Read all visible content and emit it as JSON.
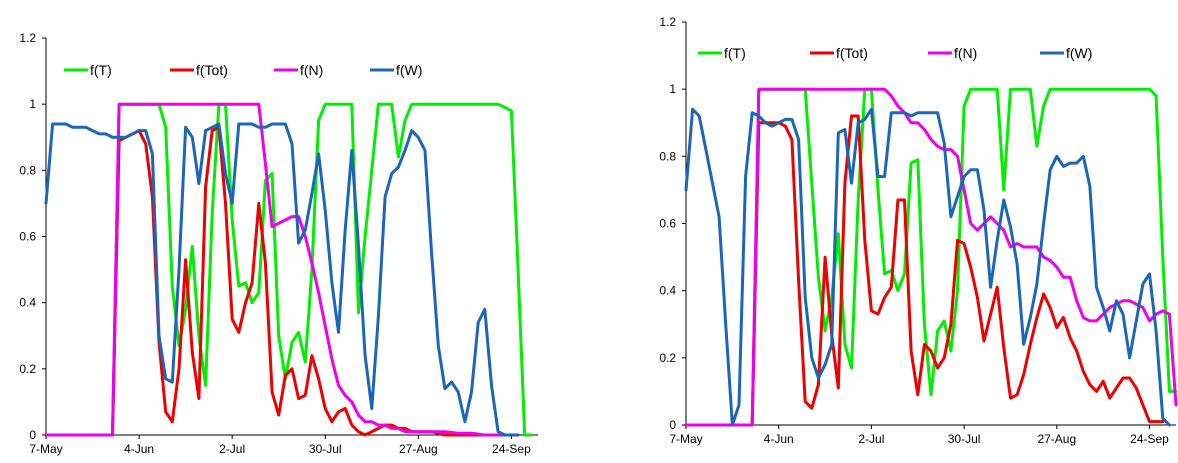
{
  "chart_data": [
    {
      "type": "line",
      "title": "",
      "xlabel": "",
      "ylabel": "",
      "ylim": [
        0,
        1.2
      ],
      "yticks": [
        "0",
        "0.2",
        "0.4",
        "0.6",
        "0.8",
        "1",
        "1.2"
      ],
      "xticks": [
        "7-May",
        "4-Jun",
        "2-Jul",
        "30-Jul",
        "27-Aug",
        "24-Sep"
      ],
      "xlim_day": [
        0,
        148
      ],
      "legend_position": "top",
      "series": [
        {
          "name": "f(T)",
          "color": "#00ee00",
          "x": [
            0,
            20,
            22,
            24,
            26,
            28,
            30,
            32,
            34,
            36,
            38,
            40,
            42,
            44,
            46,
            48,
            50,
            52,
            54,
            56,
            58,
            60,
            62,
            64,
            66,
            68,
            70,
            72,
            74,
            76,
            78,
            80,
            82,
            84,
            86,
            88,
            90,
            92,
            94,
            96,
            98,
            100,
            102,
            104,
            106,
            108,
            110,
            112,
            114,
            116,
            120,
            124,
            128,
            132,
            136,
            140,
            142,
            144,
            146
          ],
          "y": [
            0,
            0,
            1,
            1,
            1,
            1,
            1,
            1,
            1,
            0.93,
            0.45,
            0.27,
            0.38,
            0.57,
            0.3,
            0.15,
            0.67,
            1,
            1,
            0.65,
            0.45,
            0.46,
            0.4,
            0.43,
            0.77,
            0.79,
            0.3,
            0.17,
            0.28,
            0.31,
            0.22,
            0.5,
            0.95,
            1,
            1,
            1,
            1,
            1,
            0.37,
            0.6,
            0.8,
            1,
            1,
            1,
            0.84,
            0.95,
            1,
            1,
            1,
            1,
            1,
            1,
            1,
            1,
            1,
            0.98,
            0.5,
            0,
            0
          ]
        },
        {
          "name": "f(Tot)",
          "color": "#ee0000",
          "x": [
            0,
            20,
            22,
            24,
            26,
            28,
            30,
            32,
            34,
            36,
            38,
            40,
            42,
            44,
            46,
            48,
            50,
            52,
            54,
            56,
            58,
            60,
            62,
            64,
            66,
            68,
            70,
            72,
            74,
            76,
            78,
            80,
            82,
            84,
            86,
            88,
            90,
            92,
            94,
            96,
            98,
            100,
            102,
            104,
            106,
            108,
            110,
            112,
            114,
            116,
            120,
            124,
            128,
            132,
            136,
            140
          ],
          "y": [
            0,
            0,
            0.89,
            0.9,
            0.91,
            0.92,
            0.88,
            0.72,
            0.28,
            0.07,
            0.04,
            0.2,
            0.53,
            0.25,
            0.11,
            0.75,
            0.92,
            0.93,
            0.7,
            0.35,
            0.31,
            0.4,
            0.46,
            0.7,
            0.52,
            0.13,
            0.06,
            0.18,
            0.2,
            0.11,
            0.12,
            0.24,
            0.17,
            0.08,
            0.04,
            0.07,
            0.08,
            0.03,
            0.01,
            0.0,
            0.01,
            0.02,
            0.03,
            0.03,
            0.02,
            0.02,
            0.01,
            0.01,
            0.01,
            0.01,
            0.0,
            0.0,
            0.0,
            0.0,
            0.0,
            0.0
          ]
        },
        {
          "name": "f(N)",
          "color": "#ee00ee",
          "x": [
            0,
            20,
            22,
            24,
            26,
            28,
            30,
            32,
            34,
            36,
            38,
            40,
            42,
            44,
            46,
            48,
            50,
            52,
            54,
            56,
            58,
            60,
            62,
            64,
            66,
            68,
            70,
            72,
            74,
            76,
            78,
            80,
            82,
            84,
            86,
            88,
            90,
            92,
            94,
            96,
            98,
            100,
            102,
            104,
            106,
            108,
            110,
            112,
            114,
            116,
            120,
            124,
            128,
            132,
            136,
            140
          ],
          "y": [
            0,
            0,
            1,
            1,
            1,
            1,
            1,
            1,
            1,
            1,
            1,
            1,
            1,
            1,
            1,
            1,
            1,
            1,
            1,
            1,
            1,
            1,
            1,
            1,
            0.82,
            0.63,
            0.64,
            0.65,
            0.66,
            0.66,
            0.6,
            0.52,
            0.43,
            0.33,
            0.23,
            0.15,
            0.12,
            0.1,
            0.06,
            0.04,
            0.04,
            0.03,
            0.03,
            0.02,
            0.02,
            0.01,
            0.01,
            0.01,
            0.01,
            0.01,
            0.01,
            0.005,
            0.005,
            0.0,
            0.0,
            0.0
          ]
        },
        {
          "name": "f(W)",
          "color": "#1c66b8",
          "x": [
            0,
            2,
            4,
            6,
            8,
            10,
            12,
            14,
            16,
            18,
            20,
            22,
            24,
            26,
            28,
            30,
            32,
            34,
            36,
            38,
            40,
            42,
            44,
            46,
            48,
            50,
            52,
            54,
            56,
            58,
            60,
            62,
            64,
            66,
            68,
            70,
            72,
            74,
            76,
            78,
            80,
            82,
            84,
            86,
            88,
            90,
            92,
            94,
            96,
            98,
            100,
            102,
            104,
            106,
            108,
            110,
            112,
            114,
            116,
            118,
            120,
            122,
            124,
            126,
            128,
            130,
            132,
            134,
            136,
            138,
            140,
            142
          ],
          "y": [
            0.7,
            0.94,
            0.94,
            0.94,
            0.93,
            0.93,
            0.93,
            0.92,
            0.91,
            0.91,
            0.9,
            0.9,
            0.9,
            0.91,
            0.92,
            0.92,
            0.85,
            0.3,
            0.17,
            0.16,
            0.5,
            0.93,
            0.9,
            0.76,
            0.92,
            0.93,
            0.94,
            0.79,
            0.7,
            0.94,
            0.94,
            0.94,
            0.93,
            0.93,
            0.94,
            0.94,
            0.94,
            0.88,
            0.58,
            0.62,
            0.73,
            0.85,
            0.68,
            0.46,
            0.31,
            0.62,
            0.86,
            0.57,
            0.24,
            0.08,
            0.36,
            0.72,
            0.79,
            0.81,
            0.86,
            0.92,
            0.9,
            0.86,
            0.55,
            0.27,
            0.14,
            0.16,
            0.13,
            0.04,
            0.13,
            0.34,
            0.38,
            0.15,
            0.01,
            0.0,
            0.0,
            0.0
          ]
        }
      ]
    },
    {
      "type": "line",
      "title": "",
      "xlabel": "",
      "ylabel": "",
      "ylim": [
        0,
        1.2
      ],
      "yticks": [
        "0",
        "0.2",
        "0.4",
        "0.6",
        "0.8",
        "1",
        "1.2"
      ],
      "xticks": [
        "7-May",
        "4-Jun",
        "2-Jul",
        "30-Jul",
        "27-Aug",
        "24-Sep"
      ],
      "xlim_day": [
        0,
        148
      ],
      "legend_position": "top",
      "series": [
        {
          "name": "f(T)",
          "color": "#00ee00",
          "x": [
            0,
            20,
            22,
            24,
            26,
            28,
            30,
            32,
            34,
            36,
            38,
            40,
            42,
            44,
            46,
            48,
            50,
            52,
            54,
            56,
            58,
            60,
            62,
            64,
            66,
            68,
            70,
            72,
            74,
            76,
            78,
            80,
            82,
            84,
            86,
            88,
            90,
            92,
            94,
            96,
            98,
            100,
            102,
            104,
            106,
            108,
            110,
            112,
            114,
            116,
            120,
            124,
            128,
            132,
            136,
            140,
            142,
            144,
            146,
            148
          ],
          "y": [
            0,
            0,
            1,
            1,
            1,
            1,
            1,
            1,
            1,
            1,
            0.72,
            0.44,
            0.28,
            0.38,
            0.57,
            0.24,
            0.17,
            0.67,
            1,
            1,
            0.7,
            0.45,
            0.46,
            0.4,
            0.45,
            0.78,
            0.79,
            0.3,
            0.09,
            0.28,
            0.31,
            0.22,
            0.4,
            0.95,
            1,
            1,
            1,
            1,
            1,
            0.7,
            1,
            1,
            1,
            1,
            0.83,
            0.95,
            1,
            1,
            1,
            1,
            1,
            1,
            1,
            1,
            1,
            1,
            0.98,
            0.5,
            0.1,
            0.1
          ]
        },
        {
          "name": "f(Tot)",
          "color": "#ee0000",
          "x": [
            0,
            20,
            22,
            24,
            26,
            28,
            30,
            32,
            34,
            36,
            38,
            40,
            42,
            44,
            46,
            48,
            50,
            52,
            54,
            56,
            58,
            60,
            62,
            64,
            66,
            68,
            70,
            72,
            74,
            76,
            78,
            80,
            82,
            84,
            86,
            88,
            90,
            92,
            94,
            96,
            98,
            100,
            102,
            104,
            106,
            108,
            110,
            112,
            114,
            116,
            118,
            120,
            122,
            124,
            126,
            128,
            130,
            132,
            134,
            136,
            138,
            140,
            142,
            144
          ],
          "y": [
            0,
            0,
            0.9,
            0.9,
            0.9,
            0.9,
            0.89,
            0.85,
            0.43,
            0.07,
            0.05,
            0.12,
            0.5,
            0.27,
            0.11,
            0.72,
            0.92,
            0.92,
            0.55,
            0.34,
            0.33,
            0.38,
            0.41,
            0.67,
            0.67,
            0.22,
            0.09,
            0.24,
            0.22,
            0.17,
            0.2,
            0.3,
            0.55,
            0.54,
            0.47,
            0.38,
            0.25,
            0.33,
            0.41,
            0.23,
            0.08,
            0.09,
            0.15,
            0.24,
            0.32,
            0.39,
            0.35,
            0.29,
            0.32,
            0.26,
            0.22,
            0.16,
            0.12,
            0.1,
            0.13,
            0.08,
            0.11,
            0.14,
            0.14,
            0.11,
            0.06,
            0.01,
            0.01,
            0.01
          ]
        },
        {
          "name": "f(N)",
          "color": "#ee00ee",
          "x": [
            0,
            20,
            22,
            24,
            26,
            28,
            30,
            32,
            34,
            36,
            38,
            40,
            42,
            44,
            46,
            48,
            50,
            52,
            54,
            56,
            58,
            60,
            62,
            64,
            66,
            68,
            70,
            72,
            74,
            76,
            78,
            80,
            82,
            84,
            86,
            88,
            90,
            92,
            94,
            96,
            98,
            100,
            102,
            104,
            106,
            108,
            110,
            112,
            114,
            116,
            118,
            120,
            122,
            124,
            126,
            128,
            130,
            132,
            134,
            136,
            138,
            140,
            142,
            144,
            146,
            148
          ],
          "y": [
            0,
            0,
            1,
            1,
            1,
            1,
            1,
            1,
            1,
            1,
            1,
            1,
            1,
            1,
            1,
            1,
            1,
            1,
            1,
            1,
            1,
            1,
            0.98,
            0.95,
            0.93,
            0.9,
            0.9,
            0.88,
            0.85,
            0.83,
            0.82,
            0.82,
            0.8,
            0.7,
            0.6,
            0.58,
            0.6,
            0.62,
            0.6,
            0.58,
            0.53,
            0.54,
            0.53,
            0.53,
            0.53,
            0.5,
            0.49,
            0.47,
            0.44,
            0.44,
            0.37,
            0.32,
            0.31,
            0.31,
            0.33,
            0.35,
            0.36,
            0.37,
            0.37,
            0.36,
            0.35,
            0.31,
            0.33,
            0.34,
            0.33,
            0.06
          ]
        },
        {
          "name": "f(W)",
          "color": "#1c66b8",
          "x": [
            0,
            2,
            4,
            6,
            8,
            10,
            12,
            14,
            16,
            18,
            20,
            22,
            24,
            26,
            28,
            30,
            32,
            34,
            36,
            38,
            40,
            42,
            44,
            46,
            48,
            50,
            52,
            54,
            56,
            58,
            60,
            62,
            64,
            66,
            68,
            70,
            72,
            74,
            76,
            78,
            80,
            82,
            84,
            86,
            88,
            90,
            92,
            94,
            96,
            98,
            100,
            102,
            104,
            106,
            108,
            110,
            112,
            114,
            116,
            118,
            120,
            122,
            124,
            126,
            128,
            130,
            132,
            134,
            136,
            138,
            140,
            142,
            144,
            146
          ],
          "y": [
            0.7,
            0.94,
            0.92,
            0.82,
            0.72,
            0.62,
            0.3,
            0.0,
            0.06,
            0.74,
            0.93,
            0.92,
            0.9,
            0.89,
            0.9,
            0.91,
            0.91,
            0.85,
            0.38,
            0.2,
            0.14,
            0.18,
            0.24,
            0.87,
            0.88,
            0.72,
            0.9,
            0.91,
            0.94,
            0.74,
            0.74,
            0.93,
            0.93,
            0.93,
            0.92,
            0.93,
            0.93,
            0.93,
            0.93,
            0.84,
            0.62,
            0.68,
            0.74,
            0.76,
            0.76,
            0.64,
            0.41,
            0.55,
            0.67,
            0.59,
            0.48,
            0.24,
            0.32,
            0.42,
            0.6,
            0.76,
            0.8,
            0.77,
            0.78,
            0.78,
            0.8,
            0.71,
            0.41,
            0.35,
            0.28,
            0.37,
            0.33,
            0.2,
            0.31,
            0.42,
            0.45,
            0.28,
            0.02,
            0.0
          ]
        }
      ]
    }
  ]
}
